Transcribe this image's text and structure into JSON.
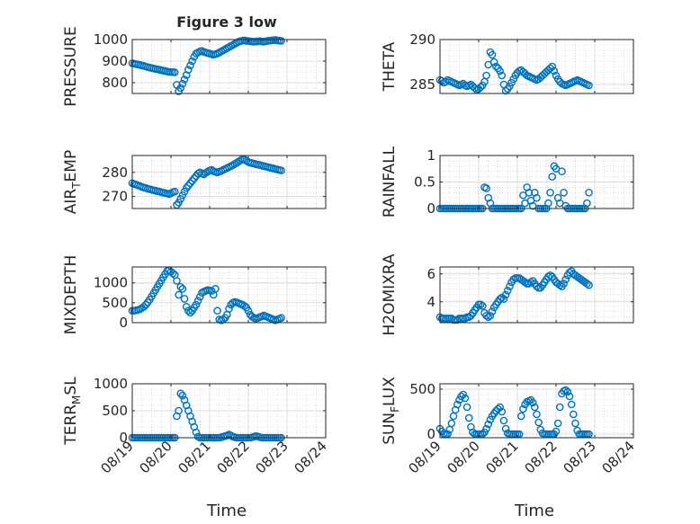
{
  "figure": {
    "title": "Figure 3 low",
    "xlabel": "Time",
    "xticks": [
      "08/19",
      "08/20",
      "08/21",
      "08/22",
      "08/23",
      "08/24"
    ],
    "marker_color": "#0072bd"
  },
  "chart_data": [
    {
      "type": "scatter",
      "ylabel": "PRESSURE",
      "xlim": [
        0,
        5
      ],
      "ylim": [
        750,
        1000
      ],
      "yticks": [
        "800",
        "900",
        "1000"
      ],
      "x": [
        0.0,
        0.05,
        0.1,
        0.15,
        0.2,
        0.25,
        0.3,
        0.35,
        0.4,
        0.45,
        0.5,
        0.55,
        0.6,
        0.65,
        0.7,
        0.75,
        0.8,
        0.85,
        0.9,
        0.95,
        1.0,
        1.05,
        1.1,
        1.15,
        1.2,
        1.25,
        1.3,
        1.35,
        1.4,
        1.45,
        1.5,
        1.55,
        1.6,
        1.65,
        1.7,
        1.75,
        1.8,
        1.85,
        1.9,
        1.95,
        2.0,
        2.05,
        2.1,
        2.15,
        2.2,
        2.25,
        2.3,
        2.35,
        2.4,
        2.45,
        2.5,
        2.55,
        2.6,
        2.65,
        2.7,
        2.75,
        2.8,
        2.85,
        2.9,
        2.95,
        3.0,
        3.05,
        3.1,
        3.15,
        3.2,
        3.25,
        3.3,
        3.35,
        3.4,
        3.45,
        3.5,
        3.55,
        3.6,
        3.65,
        3.7,
        3.75,
        3.8,
        3.85
      ],
      "y": [
        890,
        888,
        886,
        884,
        882,
        880,
        878,
        875,
        872,
        870,
        868,
        866,
        864,
        862,
        860,
        858,
        856,
        854,
        852,
        850,
        850,
        849,
        848,
        790,
        760,
        775,
        795,
        815,
        835,
        860,
        880,
        900,
        920,
        935,
        940,
        945,
        947,
        943,
        940,
        937,
        935,
        932,
        930,
        932,
        935,
        940,
        945,
        950,
        955,
        960,
        965,
        970,
        975,
        980,
        985,
        990,
        993,
        995,
        996,
        994,
        993,
        992,
        991,
        990,
        991,
        992,
        993,
        991,
        990,
        992,
        994,
        995,
        996,
        997,
        998,
        996,
        995,
        994
      ]
    },
    {
      "type": "scatter",
      "ylabel": "THETA",
      "xlim": [
        0,
        5
      ],
      "ylim": [
        284,
        290
      ],
      "yticks": [
        "285",
        "290"
      ],
      "x": [
        0.0,
        0.05,
        0.1,
        0.15,
        0.2,
        0.25,
        0.3,
        0.35,
        0.4,
        0.45,
        0.5,
        0.55,
        0.6,
        0.65,
        0.7,
        0.75,
        0.8,
        0.85,
        0.9,
        0.95,
        1.0,
        1.05,
        1.1,
        1.15,
        1.2,
        1.25,
        1.3,
        1.35,
        1.4,
        1.45,
        1.5,
        1.55,
        1.6,
        1.65,
        1.7,
        1.75,
        1.8,
        1.85,
        1.9,
        1.95,
        2.0,
        2.05,
        2.1,
        2.15,
        2.2,
        2.25,
        2.3,
        2.35,
        2.4,
        2.45,
        2.5,
        2.55,
        2.6,
        2.65,
        2.7,
        2.75,
        2.8,
        2.85,
        2.9,
        2.95,
        3.0,
        3.05,
        3.1,
        3.15,
        3.2,
        3.25,
        3.3,
        3.35,
        3.4,
        3.45,
        3.5,
        3.55,
        3.6,
        3.65,
        3.7,
        3.75,
        3.8,
        3.85
      ],
      "y": [
        285.5,
        285.4,
        285.2,
        285.3,
        285.5,
        285.4,
        285.3,
        285.2,
        285.1,
        285.0,
        284.9,
        285.0,
        285.1,
        284.9,
        284.8,
        284.9,
        285.0,
        284.8,
        284.6,
        284.4,
        284.5,
        284.7,
        284.9,
        285.3,
        286.0,
        287.2,
        288.6,
        288.3,
        287.5,
        287.0,
        286.8,
        286.5,
        286.0,
        285.0,
        284.3,
        284.5,
        284.8,
        285.2,
        285.6,
        286.0,
        286.3,
        286.5,
        286.6,
        286.4,
        286.2,
        286.0,
        285.9,
        285.8,
        285.7,
        285.6,
        285.5,
        285.6,
        285.8,
        286.0,
        286.2,
        286.4,
        286.6,
        286.8,
        287.0,
        286.5,
        286.0,
        285.6,
        285.3,
        285.1,
        285.0,
        284.9,
        285.0,
        285.1,
        285.2,
        285.3,
        285.4,
        285.5,
        285.4,
        285.3,
        285.2,
        285.1,
        285.0,
        284.9
      ]
    },
    {
      "type": "scatter",
      "ylabel": "AIR_TEMP",
      "xlim": [
        0,
        5
      ],
      "ylim": [
        265,
        287
      ],
      "yticks": [
        "270",
        "280"
      ],
      "x": [
        0.0,
        0.05,
        0.1,
        0.15,
        0.2,
        0.25,
        0.3,
        0.35,
        0.4,
        0.45,
        0.5,
        0.55,
        0.6,
        0.65,
        0.7,
        0.75,
        0.8,
        0.85,
        0.9,
        0.95,
        1.0,
        1.05,
        1.1,
        1.15,
        1.2,
        1.25,
        1.3,
        1.35,
        1.4,
        1.45,
        1.5,
        1.55,
        1.6,
        1.65,
        1.7,
        1.75,
        1.8,
        1.85,
        1.9,
        1.95,
        2.0,
        2.05,
        2.1,
        2.15,
        2.2,
        2.25,
        2.3,
        2.35,
        2.4,
        2.45,
        2.5,
        2.55,
        2.6,
        2.65,
        2.7,
        2.75,
        2.8,
        2.85,
        2.9,
        2.95,
        3.0,
        3.05,
        3.1,
        3.15,
        3.2,
        3.25,
        3.3,
        3.35,
        3.4,
        3.45,
        3.5,
        3.55,
        3.6,
        3.65,
        3.7,
        3.75,
        3.8,
        3.85
      ],
      "y": [
        275.5,
        275.2,
        274.9,
        274.6,
        274.3,
        274.0,
        273.7,
        273.5,
        273.2,
        273.0,
        272.8,
        272.6,
        272.4,
        272.2,
        272.0,
        271.8,
        271.6,
        271.4,
        271.2,
        271.0,
        271.3,
        271.8,
        272.0,
        266.5,
        267.5,
        269.0,
        270.5,
        272.0,
        273.5,
        274.5,
        275.5,
        276.5,
        277.5,
        278.5,
        279.5,
        280.0,
        279.5,
        279.2,
        279.8,
        280.3,
        280.8,
        281.0,
        280.5,
        280.2,
        280.0,
        280.3,
        280.6,
        281.0,
        281.4,
        281.8,
        282.2,
        282.6,
        283.0,
        283.5,
        284.0,
        284.5,
        285.0,
        285.5,
        285.3,
        284.8,
        284.3,
        284.0,
        283.8,
        283.6,
        283.4,
        283.2,
        283.0,
        282.8,
        282.6,
        282.4,
        282.2,
        282.0,
        281.8,
        281.6,
        281.4,
        281.2,
        281.0,
        280.8
      ]
    },
    {
      "type": "scatter",
      "ylabel": "RAINFALL",
      "xlim": [
        0,
        5
      ],
      "ylim": [
        0,
        1
      ],
      "yticks": [
        "0",
        "0.5",
        "1"
      ],
      "x": [
        0.0,
        0.05,
        0.1,
        0.15,
        0.2,
        0.25,
        0.3,
        0.35,
        0.4,
        0.45,
        0.5,
        0.55,
        0.6,
        0.65,
        0.7,
        0.75,
        0.8,
        0.85,
        0.9,
        0.95,
        1.0,
        1.05,
        1.1,
        1.15,
        1.2,
        1.25,
        1.3,
        1.35,
        1.4,
        1.45,
        1.5,
        1.55,
        1.6,
        1.65,
        1.7,
        1.75,
        1.8,
        1.85,
        1.9,
        1.95,
        2.0,
        2.05,
        2.1,
        2.15,
        2.2,
        2.25,
        2.3,
        2.35,
        2.4,
        2.45,
        2.5,
        2.55,
        2.6,
        2.65,
        2.7,
        2.75,
        2.8,
        2.85,
        2.9,
        2.95,
        3.0,
        3.05,
        3.1,
        3.15,
        3.2,
        3.25,
        3.3,
        3.35,
        3.4,
        3.45,
        3.5,
        3.55,
        3.6,
        3.65,
        3.7,
        3.75,
        3.8,
        3.85
      ],
      "y": [
        0,
        0,
        0,
        0,
        0,
        0,
        0,
        0,
        0,
        0,
        0,
        0,
        0,
        0,
        0,
        0,
        0,
        0,
        0,
        0,
        0,
        0,
        0,
        0.4,
        0.38,
        0.2,
        0.1,
        0,
        0,
        0,
        0,
        0,
        0,
        0,
        0,
        0,
        0,
        0,
        0,
        0,
        0,
        0,
        0,
        0.25,
        0.1,
        0.4,
        0.3,
        0.15,
        0.05,
        0.3,
        0.2,
        0,
        0,
        0,
        0,
        0,
        0.1,
        0.3,
        0.6,
        0.8,
        0.75,
        0.2,
        0.1,
        0.7,
        0.3,
        0.05,
        0,
        0,
        0,
        0,
        0,
        0,
        0,
        0,
        0,
        0,
        0.1,
        0.3
      ]
    },
    {
      "type": "scatter",
      "ylabel": "MIXDEPTH",
      "xlim": [
        0,
        5
      ],
      "ylim": [
        0,
        1400
      ],
      "yticks": [
        "0",
        "500",
        "1000"
      ],
      "x": [
        0.0,
        0.05,
        0.1,
        0.15,
        0.2,
        0.25,
        0.3,
        0.35,
        0.4,
        0.45,
        0.5,
        0.55,
        0.6,
        0.65,
        0.7,
        0.75,
        0.8,
        0.85,
        0.9,
        0.95,
        1.0,
        1.05,
        1.1,
        1.15,
        1.2,
        1.25,
        1.3,
        1.35,
        1.4,
        1.45,
        1.5,
        1.55,
        1.6,
        1.65,
        1.7,
        1.75,
        1.8,
        1.85,
        1.9,
        1.95,
        2.0,
        2.05,
        2.1,
        2.15,
        2.2,
        2.25,
        2.3,
        2.35,
        2.4,
        2.45,
        2.5,
        2.55,
        2.6,
        2.65,
        2.7,
        2.75,
        2.8,
        2.85,
        2.9,
        2.95,
        3.0,
        3.05,
        3.1,
        3.15,
        3.2,
        3.25,
        3.3,
        3.35,
        3.4,
        3.45,
        3.5,
        3.55,
        3.6,
        3.65,
        3.7,
        3.75,
        3.8,
        3.85
      ],
      "y": [
        300,
        300,
        310,
        320,
        340,
        370,
        400,
        450,
        510,
        580,
        660,
        740,
        820,
        900,
        980,
        1060,
        1140,
        1220,
        1300,
        1320,
        1280,
        1240,
        1200,
        1050,
        700,
        900,
        850,
        600,
        400,
        300,
        250,
        300,
        380,
        450,
        550,
        650,
        750,
        780,
        800,
        820,
        810,
        800,
        700,
        850,
        300,
        80,
        60,
        80,
        120,
        200,
        350,
        450,
        500,
        520,
        510,
        490,
        470,
        450,
        420,
        380,
        300,
        200,
        150,
        120,
        100,
        120,
        140,
        160,
        180,
        160,
        140,
        120,
        100,
        80,
        60,
        80,
        100,
        120
      ]
    },
    {
      "type": "scatter",
      "ylabel": "H2OMIXRA",
      "xlim": [
        0,
        5
      ],
      "ylim": [
        2.5,
        6.5
      ],
      "yticks": [
        "4",
        "6"
      ],
      "x": [
        0.0,
        0.05,
        0.1,
        0.15,
        0.2,
        0.25,
        0.3,
        0.35,
        0.4,
        0.45,
        0.5,
        0.55,
        0.6,
        0.65,
        0.7,
        0.75,
        0.8,
        0.85,
        0.9,
        0.95,
        1.0,
        1.05,
        1.1,
        1.15,
        1.2,
        1.25,
        1.3,
        1.35,
        1.4,
        1.45,
        1.5,
        1.55,
        1.6,
        1.65,
        1.7,
        1.75,
        1.8,
        1.85,
        1.9,
        1.95,
        2.0,
        2.05,
        2.1,
        2.15,
        2.2,
        2.25,
        2.3,
        2.35,
        2.4,
        2.45,
        2.5,
        2.55,
        2.6,
        2.65,
        2.7,
        2.75,
        2.8,
        2.85,
        2.9,
        2.95,
        3.0,
        3.05,
        3.1,
        3.15,
        3.2,
        3.25,
        3.3,
        3.35,
        3.4,
        3.45,
        3.5,
        3.55,
        3.6,
        3.65,
        3.7,
        3.75,
        3.8,
        3.85
      ],
      "y": [
        2.9,
        2.8,
        2.8,
        2.8,
        2.8,
        2.8,
        2.8,
        2.7,
        2.7,
        2.7,
        2.8,
        2.8,
        2.8,
        2.8,
        2.9,
        2.9,
        3.0,
        3.2,
        3.4,
        3.6,
        3.8,
        3.8,
        3.7,
        3.2,
        3.0,
        2.9,
        3.0,
        3.3,
        3.6,
        3.8,
        4.0,
        4.2,
        4.3,
        4.2,
        4.5,
        4.8,
        5.1,
        5.4,
        5.6,
        5.7,
        5.7,
        5.7,
        5.6,
        5.5,
        5.4,
        5.3,
        5.3,
        5.4,
        5.5,
        5.3,
        5.1,
        5.0,
        5.0,
        5.2,
        5.4,
        5.6,
        5.8,
        5.9,
        5.8,
        5.6,
        5.4,
        5.3,
        5.2,
        5.1,
        5.3,
        5.6,
        5.9,
        6.1,
        6.2,
        6.0,
        5.9,
        5.8,
        5.7,
        5.6,
        5.5,
        5.4,
        5.3,
        5.2
      ]
    },
    {
      "type": "scatter",
      "ylabel": "TERR_MSL",
      "xlim": [
        0,
        5
      ],
      "ylim": [
        0,
        1000
      ],
      "yticks": [
        "0",
        "500",
        "1000"
      ],
      "x": [
        0.0,
        0.05,
        0.1,
        0.15,
        0.2,
        0.25,
        0.3,
        0.35,
        0.4,
        0.45,
        0.5,
        0.55,
        0.6,
        0.65,
        0.7,
        0.75,
        0.8,
        0.85,
        0.9,
        0.95,
        1.0,
        1.05,
        1.1,
        1.15,
        1.2,
        1.25,
        1.3,
        1.35,
        1.4,
        1.45,
        1.5,
        1.55,
        1.6,
        1.65,
        1.7,
        1.75,
        1.8,
        1.85,
        1.9,
        1.95,
        2.0,
        2.05,
        2.1,
        2.15,
        2.2,
        2.25,
        2.3,
        2.35,
        2.4,
        2.45,
        2.5,
        2.55,
        2.6,
        2.65,
        2.7,
        2.75,
        2.8,
        2.85,
        2.9,
        2.95,
        3.0,
        3.05,
        3.1,
        3.15,
        3.2,
        3.25,
        3.3,
        3.35,
        3.4,
        3.45,
        3.5,
        3.55,
        3.6,
        3.65,
        3.7,
        3.75,
        3.8,
        3.85
      ],
      "y": [
        0,
        0,
        0,
        0,
        0,
        0,
        0,
        0,
        0,
        0,
        0,
        0,
        0,
        0,
        0,
        0,
        0,
        0,
        0,
        0,
        0,
        0,
        0,
        400,
        500,
        820,
        780,
        700,
        600,
        500,
        400,
        300,
        200,
        100,
        20,
        0,
        0,
        0,
        0,
        0,
        0,
        0,
        0,
        0,
        0,
        0,
        10,
        20,
        30,
        40,
        60,
        40,
        20,
        10,
        0,
        0,
        0,
        0,
        0,
        0,
        0,
        0,
        10,
        20,
        30,
        20,
        10,
        0,
        0,
        0,
        0,
        0,
        0,
        0,
        0,
        0,
        0,
        0
      ]
    },
    {
      "type": "scatter",
      "ylabel": "SUN_FLUX",
      "xlim": [
        0,
        5
      ],
      "ylim": [
        -40,
        560
      ],
      "yticks": [
        "0",
        "500"
      ],
      "x": [
        0.0,
        0.05,
        0.1,
        0.15,
        0.2,
        0.25,
        0.3,
        0.35,
        0.4,
        0.45,
        0.5,
        0.55,
        0.6,
        0.65,
        0.7,
        0.75,
        0.8,
        0.85,
        0.9,
        0.95,
        1.0,
        1.05,
        1.1,
        1.15,
        1.2,
        1.25,
        1.3,
        1.35,
        1.4,
        1.45,
        1.5,
        1.55,
        1.6,
        1.65,
        1.7,
        1.75,
        1.8,
        1.85,
        1.9,
        1.95,
        2.0,
        2.05,
        2.1,
        2.15,
        2.2,
        2.25,
        2.3,
        2.35,
        2.4,
        2.45,
        2.5,
        2.55,
        2.6,
        2.65,
        2.7,
        2.75,
        2.8,
        2.85,
        2.9,
        2.95,
        3.0,
        3.05,
        3.1,
        3.15,
        3.2,
        3.25,
        3.3,
        3.35,
        3.4,
        3.45,
        3.5,
        3.55,
        3.6,
        3.65,
        3.7,
        3.75,
        3.8,
        3.85
      ],
      "y": [
        60,
        30,
        0,
        0,
        0,
        50,
        120,
        200,
        270,
        330,
        380,
        420,
        440,
        400,
        300,
        180,
        80,
        20,
        0,
        0,
        0,
        0,
        0,
        20,
        60,
        110,
        160,
        200,
        230,
        260,
        280,
        300,
        250,
        150,
        60,
        10,
        0,
        0,
        0,
        0,
        0,
        0,
        200,
        280,
        330,
        360,
        370,
        380,
        350,
        300,
        220,
        130,
        50,
        10,
        0,
        0,
        0,
        0,
        0,
        0,
        30,
        120,
        300,
        450,
        480,
        490,
        470,
        420,
        330,
        220,
        120,
        40,
        0,
        0,
        0,
        0,
        0,
        0
      ]
    }
  ]
}
